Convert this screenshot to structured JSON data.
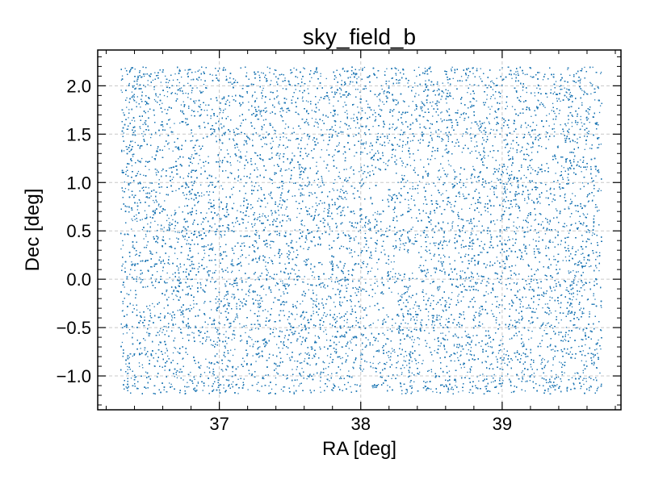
{
  "chart_data": {
    "type": "scatter",
    "title": "sky_field_b",
    "xlabel": "RA [deg]",
    "ylabel": "Dec [deg]",
    "xlim": [
      36.14,
      39.84
    ],
    "ylim": [
      -1.35,
      2.37
    ],
    "xticks": [
      {
        "value": 37,
        "label": "37"
      },
      {
        "value": 38,
        "label": "38"
      },
      {
        "value": 39,
        "label": "39"
      }
    ],
    "yticks": [
      {
        "value": 2.0,
        "label": "2.0"
      },
      {
        "value": 1.5,
        "label": "1.5"
      },
      {
        "value": 1.0,
        "label": "1.0"
      },
      {
        "value": 0.5,
        "label": "0.5"
      },
      {
        "value": 0.0,
        "label": "0.0"
      },
      {
        "value": -0.5,
        "label": "−0.5"
      },
      {
        "value": -1.0,
        "label": "−1.0"
      }
    ],
    "grid": true,
    "marker_color": "#1f77b4",
    "field_extent": {
      "ra": [
        36.3,
        39.7
      ],
      "dec": [
        -1.18,
        2.2
      ]
    },
    "masked_regions": [
      {
        "ra": 37.0,
        "dec": 1.97,
        "r": 0.09
      },
      {
        "ra": 38.17,
        "dec": 1.03,
        "r": 0.09
      },
      {
        "ra": 38.72,
        "dec": 1.24,
        "r": 0.09
      },
      {
        "ra": 36.3,
        "dec": 0.64,
        "r": 0.07
      },
      {
        "ra": 37.7,
        "dec": 0.26,
        "r": 0.09
      },
      {
        "ra": 38.31,
        "dec": 0.14,
        "r": 0.09
      },
      {
        "ra": 36.5,
        "dec": -0.17,
        "r": 0.09
      },
      {
        "ra": 36.87,
        "dec": -0.74,
        "r": 0.09
      },
      {
        "ra": 38.03,
        "dec": -1.02,
        "r": 0.09
      },
      {
        "ra": 38.03,
        "dec": -1.18,
        "r": 0.07
      }
    ]
  }
}
